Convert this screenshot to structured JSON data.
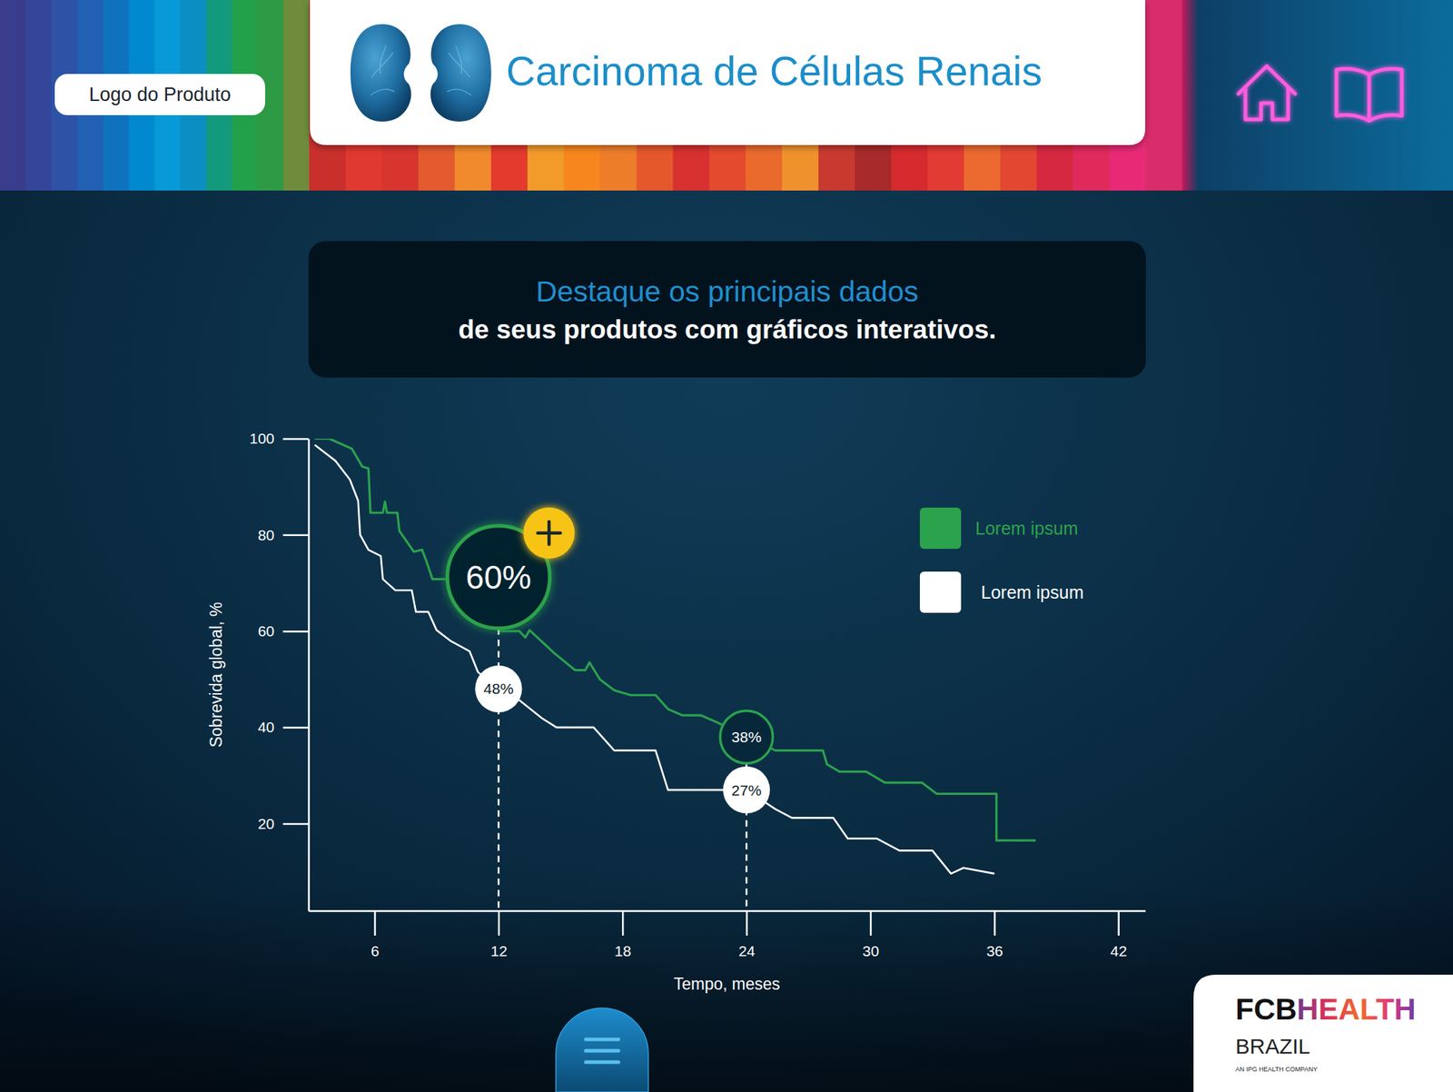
{
  "header": {
    "logo_label": "Logo do Produto",
    "title": "Carcinoma de Células Renais"
  },
  "banner": {
    "highlight": "Destaque os principais dados",
    "text": "de seus produtos com gráficos interativos."
  },
  "chart_data": {
    "type": "line",
    "xlabel": "Tempo, meses",
    "ylabel": "Sobrevida global, %",
    "xlim": [
      2.8,
      43.3
    ],
    "xticks": [
      6,
      12,
      18,
      24,
      30,
      36,
      42
    ],
    "ylim": [
      1.9,
      100
    ],
    "yticks": [
      20,
      40,
      60,
      80,
      100
    ],
    "legend": "top-right",
    "series": [
      {
        "name": "Lorem ipsum",
        "color": "#2ba24c",
        "x": [
          3.1,
          3.8,
          4.9,
          5.4,
          5.7,
          5.8,
          6.4,
          6.5,
          6.6,
          7.1,
          7.2,
          7.9,
          8.3,
          8.5,
          8.8,
          9.5,
          10.5,
          11.5,
          12,
          13,
          13.3,
          13.5,
          14.7,
          15.7,
          16.2,
          16.4,
          16.9,
          17.6,
          18.4,
          19.6,
          20.2,
          20.9,
          21.8,
          22.6,
          24,
          25.4,
          27.7,
          27.9,
          28.5,
          29.8,
          30.7,
          32.5,
          33.2,
          36.1,
          36.1,
          38
        ],
        "values": [
          100,
          100,
          97.9,
          94.2,
          93.8,
          84.6,
          84.6,
          86.9,
          84.6,
          84.6,
          80.8,
          76.5,
          76.9,
          74.6,
          70.8,
          70.8,
          68,
          64,
          60,
          60,
          58.7,
          60.2,
          55.4,
          51.9,
          51.9,
          53.5,
          50,
          47.7,
          46.7,
          46.7,
          43.8,
          42.5,
          42.5,
          41,
          38,
          35.2,
          35.2,
          32.3,
          30.8,
          30.8,
          28.5,
          28.5,
          26.2,
          26.2,
          16.5,
          16.5
        ]
      },
      {
        "name": "Lorem ipsum",
        "color": "#ffffff",
        "x": [
          3.1,
          4.1,
          4.8,
          5.2,
          5.3,
          5.7,
          6.3,
          6.4,
          7,
          7.8,
          8,
          8.6,
          9,
          9.7,
          10.6,
          11,
          12,
          12.7,
          14.1,
          14.8,
          16.6,
          17.6,
          19.6,
          20.2,
          21.5,
          24,
          25.4,
          26.2,
          28.2,
          28.9,
          30.3,
          31.4,
          33,
          33.9,
          34.5,
          36
        ],
        "values": [
          98.7,
          95.4,
          91.5,
          87.1,
          80,
          76.9,
          75.6,
          70.8,
          68.5,
          68.5,
          64,
          64,
          60.2,
          57.9,
          55.8,
          51.5,
          48,
          46.7,
          41.9,
          40,
          40,
          35.2,
          35.2,
          27,
          27,
          27,
          23,
          21.2,
          21.2,
          16.9,
          16.9,
          14.4,
          14.4,
          9.6,
          10.8,
          9.6
        ]
      }
    ],
    "annotations": [
      {
        "text": "60%",
        "x": 12,
        "y": 60,
        "color": "#2ba24c"
      },
      {
        "text": "48%",
        "x": 12,
        "y": 48,
        "color": "#ffffff"
      },
      {
        "text": "38%",
        "x": 24,
        "y": 38,
        "color": "#2ba24c"
      },
      {
        "text": "27%",
        "x": 24,
        "y": 27,
        "color": "#ffffff"
      }
    ]
  },
  "footer": {
    "brand": "FCB",
    "brand_accent": "HEALTH",
    "country": "BRAZIL",
    "tagline": "AN IPG HEALTH COMPANY"
  }
}
